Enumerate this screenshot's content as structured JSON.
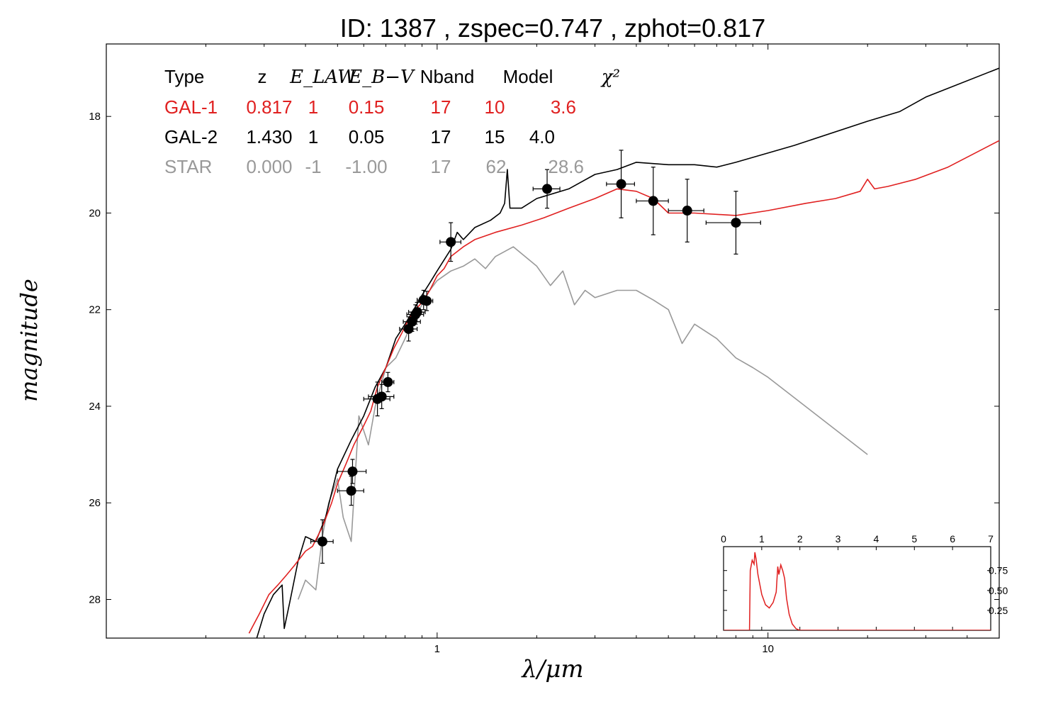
{
  "chart_data": {
    "type": "line",
    "title": "ID:  1387  , zspec=0.747 , zphot=0.817",
    "xlabel": "λ/μm",
    "ylabel": "magnitude",
    "x_scale": "log",
    "xlim": [
      0.1,
      50
    ],
    "ylim": [
      28.8,
      16.5
    ],
    "y_inverted": true,
    "x_ticks": [
      {
        "value": 1,
        "label": "1"
      },
      {
        "value": 10,
        "label": "10"
      }
    ],
    "y_ticks": [
      {
        "value": 18,
        "label": "18"
      },
      {
        "value": 20,
        "label": "20"
      },
      {
        "value": 22,
        "label": "22"
      },
      {
        "value": 24,
        "label": "24"
      },
      {
        "value": 26,
        "label": "26"
      },
      {
        "value": 28,
        "label": "28"
      }
    ],
    "fit_table": {
      "headers": [
        "Type",
        "z",
        "E_LAW",
        "E_B−V",
        "Nband",
        "Model",
        "χ²"
      ],
      "rows": [
        {
          "cells": [
            "GAL-1",
            "0.817",
            "1",
            "0.15",
            "17",
            "10",
            "3.6"
          ],
          "color": "#e02020"
        },
        {
          "cells": [
            "GAL-2",
            "1.430",
            "1",
            "0.05",
            "17",
            "15",
            "4.0"
          ],
          "color": "#000000"
        },
        {
          "cells": [
            "STAR",
            "0.000",
            "-1",
            "-1.00",
            "17",
            "62",
            "28.6"
          ],
          "color": "#999999"
        }
      ]
    },
    "series": [
      {
        "name": "GAL-1",
        "color": "#e02020",
        "points": [
          [
            0.27,
            28.7
          ],
          [
            0.29,
            28.3
          ],
          [
            0.31,
            27.9
          ],
          [
            0.33,
            27.7
          ],
          [
            0.35,
            27.5
          ],
          [
            0.37,
            27.3
          ],
          [
            0.4,
            27.0
          ],
          [
            0.42,
            26.9
          ],
          [
            0.45,
            26.5
          ],
          [
            0.48,
            26.0
          ],
          [
            0.5,
            25.6
          ],
          [
            0.53,
            25.2
          ],
          [
            0.56,
            24.8
          ],
          [
            0.6,
            24.4
          ],
          [
            0.63,
            24.1
          ],
          [
            0.66,
            23.6
          ],
          [
            0.7,
            23.2
          ],
          [
            0.74,
            22.8
          ],
          [
            0.78,
            22.5
          ],
          [
            0.82,
            22.2
          ],
          [
            0.86,
            22.0
          ],
          [
            0.9,
            21.85
          ],
          [
            0.95,
            21.6
          ],
          [
            1.0,
            21.3
          ],
          [
            1.05,
            21.15
          ],
          [
            1.1,
            20.9
          ],
          [
            1.2,
            20.7
          ],
          [
            1.3,
            20.55
          ],
          [
            1.5,
            20.4
          ],
          [
            1.8,
            20.25
          ],
          [
            2.1,
            20.1
          ],
          [
            2.5,
            19.9
          ],
          [
            3.0,
            19.7
          ],
          [
            3.5,
            19.5
          ],
          [
            4.0,
            19.55
          ],
          [
            4.5,
            19.7
          ],
          [
            5.0,
            20.0
          ],
          [
            6.0,
            20.0
          ],
          [
            8.0,
            20.05
          ],
          [
            10.0,
            19.95
          ],
          [
            13.0,
            19.8
          ],
          [
            16.0,
            19.7
          ],
          [
            19.0,
            19.55
          ],
          [
            20.0,
            19.3
          ],
          [
            21.0,
            19.5
          ],
          [
            23.0,
            19.45
          ],
          [
            28.0,
            19.3
          ],
          [
            35.0,
            19.05
          ],
          [
            50.0,
            18.5
          ]
        ]
      },
      {
        "name": "GAL-2",
        "color": "#000000",
        "points": [
          [
            0.285,
            28.8
          ],
          [
            0.3,
            28.3
          ],
          [
            0.32,
            27.9
          ],
          [
            0.34,
            27.7
          ],
          [
            0.345,
            28.6
          ],
          [
            0.36,
            28.0
          ],
          [
            0.38,
            27.2
          ],
          [
            0.4,
            26.7
          ],
          [
            0.43,
            26.8
          ],
          [
            0.46,
            26.3
          ],
          [
            0.5,
            25.3
          ],
          [
            0.55,
            24.7
          ],
          [
            0.6,
            24.2
          ],
          [
            0.65,
            23.6
          ],
          [
            0.7,
            23.2
          ],
          [
            0.75,
            22.6
          ],
          [
            0.8,
            22.3
          ],
          [
            0.85,
            22.0
          ],
          [
            0.9,
            21.7
          ],
          [
            0.95,
            21.45
          ],
          [
            1.0,
            21.2
          ],
          [
            1.1,
            20.75
          ],
          [
            1.15,
            20.4
          ],
          [
            1.2,
            20.55
          ],
          [
            1.3,
            20.3
          ],
          [
            1.45,
            20.15
          ],
          [
            1.55,
            20.0
          ],
          [
            1.6,
            19.8
          ],
          [
            1.63,
            19.1
          ],
          [
            1.66,
            19.9
          ],
          [
            1.8,
            19.9
          ],
          [
            2.0,
            19.7
          ],
          [
            2.5,
            19.5
          ],
          [
            3.0,
            19.2
          ],
          [
            3.5,
            19.1
          ],
          [
            4.0,
            18.95
          ],
          [
            5.0,
            19.0
          ],
          [
            6.0,
            19.0
          ],
          [
            7.0,
            19.05
          ],
          [
            8.0,
            18.95
          ],
          [
            12.0,
            18.6
          ],
          [
            20.0,
            18.1
          ],
          [
            25.0,
            17.9
          ],
          [
            30.0,
            17.6
          ],
          [
            50.0,
            17.0
          ]
        ]
      },
      {
        "name": "STAR",
        "color": "#999999",
        "points": [
          [
            0.38,
            28.0
          ],
          [
            0.4,
            27.6
          ],
          [
            0.43,
            27.8
          ],
          [
            0.45,
            26.7
          ],
          [
            0.47,
            26.0
          ],
          [
            0.5,
            25.5
          ],
          [
            0.52,
            26.3
          ],
          [
            0.55,
            26.8
          ],
          [
            0.58,
            24.2
          ],
          [
            0.62,
            24.8
          ],
          [
            0.65,
            24.0
          ],
          [
            0.7,
            23.2
          ],
          [
            0.75,
            23.0
          ],
          [
            0.8,
            22.6
          ],
          [
            0.85,
            22.2
          ],
          [
            0.9,
            21.9
          ],
          [
            0.95,
            21.6
          ],
          [
            1.0,
            21.4
          ],
          [
            1.1,
            21.2
          ],
          [
            1.2,
            21.1
          ],
          [
            1.3,
            20.95
          ],
          [
            1.4,
            21.15
          ],
          [
            1.5,
            20.9
          ],
          [
            1.7,
            20.7
          ],
          [
            2.0,
            21.1
          ],
          [
            2.2,
            21.5
          ],
          [
            2.4,
            21.2
          ],
          [
            2.6,
            21.9
          ],
          [
            2.8,
            21.6
          ],
          [
            3.0,
            21.75
          ],
          [
            3.5,
            21.6
          ],
          [
            4.0,
            21.6
          ],
          [
            4.5,
            21.8
          ],
          [
            5.0,
            22.0
          ],
          [
            5.5,
            22.7
          ],
          [
            6.0,
            22.3
          ],
          [
            7.0,
            22.6
          ],
          [
            8.0,
            23.0
          ],
          [
            9.0,
            23.2
          ],
          [
            10.0,
            23.4
          ],
          [
            20.0,
            25.0
          ]
        ]
      }
    ],
    "photometry": [
      {
        "x": 0.45,
        "y": 26.8,
        "xerr": 0.035,
        "yerr": 0.45
      },
      {
        "x": 0.55,
        "y": 25.75,
        "xerr": 0.05,
        "yerr": 0.3
      },
      {
        "x": 0.555,
        "y": 25.35,
        "xerr": 0.055,
        "yerr": 0.25
      },
      {
        "x": 0.66,
        "y": 23.85,
        "xerr": 0.06,
        "yerr": 0.35
      },
      {
        "x": 0.68,
        "y": 23.8,
        "xerr": 0.06,
        "yerr": 0.25
      },
      {
        "x": 0.71,
        "y": 23.5,
        "xerr": 0.03,
        "yerr": 0.2
      },
      {
        "x": 0.82,
        "y": 22.4,
        "xerr": 0.05,
        "yerr": 0.25
      },
      {
        "x": 0.84,
        "y": 22.25,
        "xerr": 0.05,
        "yerr": 0.2
      },
      {
        "x": 0.86,
        "y": 22.1,
        "xerr": 0.05,
        "yerr": 0.2
      },
      {
        "x": 0.87,
        "y": 22.05,
        "xerr": 0.05,
        "yerr": 0.2
      },
      {
        "x": 0.91,
        "y": 21.8,
        "xerr": 0.04,
        "yerr": 0.2
      },
      {
        "x": 0.93,
        "y": 21.82,
        "xerr": 0.04,
        "yerr": 0.2
      },
      {
        "x": 1.1,
        "y": 20.6,
        "xerr": 0.08,
        "yerr": 0.4
      },
      {
        "x": 2.15,
        "y": 19.5,
        "xerr": 0.2,
        "yerr": 0.4
      },
      {
        "x": 3.6,
        "y": 19.4,
        "xerr": 0.35,
        "yerr": 0.7
      },
      {
        "x": 4.5,
        "y": 19.75,
        "xerr": 0.5,
        "yerr": 0.7
      },
      {
        "x": 5.7,
        "y": 19.95,
        "xerr": 0.7,
        "yerr": 0.65
      },
      {
        "x": 8.0,
        "y": 20.2,
        "xerr": 1.5,
        "yerr": 0.65
      }
    ],
    "inset": {
      "type": "line",
      "xlim": [
        0,
        7
      ],
      "ylim": [
        0,
        1.05
      ],
      "x_ticks": [
        0,
        1,
        2,
        3,
        4,
        5,
        6,
        7
      ],
      "y_ticks": [
        0.25,
        0.5,
        0.75
      ],
      "series": [
        {
          "color": "#e02020",
          "points": [
            [
              0,
              0
            ],
            [
              0.68,
              0
            ],
            [
              0.7,
              0.75
            ],
            [
              0.75,
              0.88
            ],
            [
              0.8,
              0.83
            ],
            [
              0.82,
              0.98
            ],
            [
              0.85,
              0.9
            ],
            [
              0.9,
              0.7
            ],
            [
              1.0,
              0.45
            ],
            [
              1.1,
              0.32
            ],
            [
              1.2,
              0.28
            ],
            [
              1.3,
              0.35
            ],
            [
              1.38,
              0.48
            ],
            [
              1.42,
              0.8
            ],
            [
              1.45,
              0.7
            ],
            [
              1.5,
              0.82
            ],
            [
              1.55,
              0.75
            ],
            [
              1.6,
              0.65
            ],
            [
              1.65,
              0.4
            ],
            [
              1.72,
              0.2
            ],
            [
              1.8,
              0.08
            ],
            [
              1.9,
              0.02
            ],
            [
              2.0,
              0.0
            ],
            [
              7.0,
              0.0
            ]
          ]
        }
      ]
    }
  }
}
